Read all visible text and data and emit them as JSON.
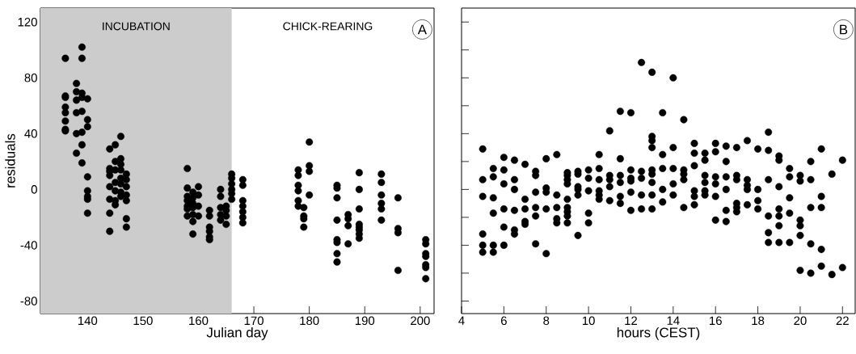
{
  "chart_data": [
    {
      "type": "scatter",
      "xlabel": "Julian day",
      "ylabel": "residuals",
      "color": "#000000",
      "marker": "circle",
      "x": [
        136,
        136,
        136,
        136,
        136,
        136,
        136,
        136,
        138,
        138,
        138,
        138,
        138,
        138,
        139,
        139,
        139,
        139,
        139,
        139,
        139,
        139,
        140,
        140,
        140,
        140,
        140,
        140,
        140,
        140,
        144,
        144,
        144,
        144,
        144,
        144,
        144,
        144,
        145,
        145,
        145,
        145,
        145,
        145,
        145,
        146,
        146,
        146,
        146,
        146,
        146,
        146,
        146,
        147,
        147,
        147,
        147,
        147,
        147,
        147,
        158,
        158,
        158,
        158,
        158,
        158,
        158,
        159,
        159,
        159,
        159,
        159,
        159,
        159,
        160,
        160,
        160,
        160,
        162,
        162,
        162,
        162,
        162,
        162,
        164,
        164,
        164,
        164,
        164,
        165,
        165,
        165,
        165,
        166,
        166,
        166,
        166,
        166,
        166,
        168,
        168,
        168,
        168,
        168,
        168,
        168,
        178,
        178,
        178,
        178,
        178,
        178,
        179,
        179,
        179,
        179,
        180,
        180,
        180,
        180,
        185,
        185,
        185,
        185,
        185,
        185,
        185,
        185,
        187,
        187,
        187,
        187,
        189,
        189,
        189,
        189,
        189,
        189,
        189,
        189,
        193,
        193,
        193,
        193,
        193,
        193,
        196,
        196,
        196,
        196,
        201,
        201,
        201,
        201,
        201,
        201,
        201
      ],
      "values": [
        94,
        67,
        66,
        59,
        55,
        49,
        43,
        42,
        76,
        70,
        64,
        55,
        40,
        26,
        102,
        94,
        69,
        66,
        56,
        41,
        32,
        19,
        65,
        50,
        45,
        9,
        -1,
        -5,
        -7,
        -17,
        29,
        15,
        13,
        10,
        2,
        -7,
        -17,
        -30,
        32,
        20,
        14,
        5,
        -1,
        -8,
        -11,
        38,
        22,
        18,
        14,
        8,
        4,
        -2,
        -5,
        11,
        7,
        2,
        -4,
        -8,
        -21,
        -27,
        15,
        1,
        -5,
        -8,
        -12,
        -14,
        -19,
        -2,
        -6,
        -10,
        -13,
        -18,
        -23,
        -32,
        2,
        -4,
        -12,
        -19,
        -15,
        -19,
        -27,
        -30,
        -34,
        -36,
        0,
        -5,
        -13,
        -18,
        -22,
        -12,
        -15,
        -19,
        -25,
        11,
        8,
        4,
        0,
        -3,
        -7,
        7,
        3,
        -8,
        -12,
        -16,
        -20,
        -24,
        14,
        10,
        3,
        -1,
        -8,
        -12,
        -13,
        -19,
        -21,
        -27,
        34,
        17,
        13,
        -4,
        3,
        1,
        -6,
        -22,
        -36,
        -38,
        -46,
        -52,
        -18,
        -21,
        -26,
        -39,
        12,
        0,
        -14,
        -25,
        -27,
        -29,
        -32,
        -35,
        11,
        5,
        -4,
        -10,
        -14,
        -22,
        -6,
        -28,
        -31,
        -58,
        -36,
        -39,
        -46,
        -48,
        -54,
        -56,
        -64
      ],
      "xlim": [
        131.5,
        202.5
      ],
      "ylim": [
        -89,
        130
      ],
      "xticks": [
        140,
        150,
        160,
        170,
        180,
        190,
        200
      ],
      "yticks": [
        -80,
        {
          "value": -60,
          "label": null
        },
        -40,
        {
          "value": -20,
          "label": null
        },
        0,
        {
          "value": 20,
          "label": null
        },
        40,
        {
          "value": 60,
          "label": null
        },
        80,
        {
          "value": 100,
          "label": null
        },
        120
      ],
      "bands": [
        {
          "axis": "x",
          "from": 131.5,
          "to": 166,
          "label": "INCUBATION",
          "color": "#cccccc"
        }
      ],
      "annotations": [
        "A",
        "CHICK-REARING"
      ]
    },
    {
      "type": "scatter",
      "xlabel": "hours (CEST)",
      "color": "#000000",
      "marker": "circle",
      "tick_labels": "x",
      "x": [
        5,
        5,
        5,
        5,
        5,
        5,
        5.5,
        5.5,
        5.5,
        5.5,
        5.5,
        5.5,
        6,
        6,
        6,
        6,
        6,
        6,
        6.5,
        6.5,
        6.5,
        6.5,
        6.5,
        6.5,
        7,
        7,
        7,
        7,
        7,
        7.5,
        7.5,
        7.5,
        7.5,
        7.5,
        7.5,
        8,
        8,
        8,
        8,
        8,
        8.5,
        8.5,
        8.5,
        8.5,
        8.5,
        9,
        9,
        9,
        9,
        9,
        9,
        9,
        9,
        9,
        9.5,
        9.5,
        9.5,
        9.5,
        9.5,
        9.5,
        10,
        10,
        10,
        10,
        10,
        10.5,
        10.5,
        10.5,
        10.5,
        10.5,
        10.5,
        11,
        11,
        11,
        11,
        11,
        11.5,
        11.5,
        11.5,
        11.5,
        11.5,
        11.5,
        12,
        12,
        12,
        12,
        12,
        12,
        12.5,
        12.5,
        12.5,
        12.5,
        12.5,
        13,
        13,
        13,
        13,
        13,
        13,
        13,
        13,
        13,
        13.5,
        13.5,
        13.5,
        13.5,
        13.5,
        14,
        14,
        14,
        14,
        14,
        14.5,
        14.5,
        14.5,
        14.5,
        14.5,
        15,
        15,
        15,
        15,
        15,
        15,
        15.5,
        15.5,
        15.5,
        15.5,
        15.5,
        15.5,
        16,
        16,
        16,
        16,
        16,
        16,
        16.5,
        16.5,
        16.5,
        16.5,
        16.5,
        16.5,
        17,
        17,
        17,
        17,
        17,
        17,
        17.5,
        17.5,
        17.5,
        17.5,
        17.5,
        18,
        18,
        18,
        18,
        18.5,
        18.5,
        18.5,
        18.5,
        18.5,
        18.5,
        19,
        19,
        19,
        19,
        19,
        19,
        19,
        19.5,
        19.5,
        19.5,
        19.5,
        19.5,
        20,
        20,
        20,
        20,
        20,
        20,
        20.5,
        20.5,
        20.5,
        20.5,
        20.5,
        21,
        21,
        21,
        21,
        21,
        21.5,
        21.5,
        22,
        22
      ],
      "values": [
        29,
        7,
        -5,
        -32,
        -40,
        -45,
        15,
        9,
        -6,
        -17,
        -40,
        -45,
        23,
        14,
        4,
        -14,
        -27,
        -40,
        21,
        7,
        0,
        -15,
        -29,
        -32,
        18,
        -7,
        -14,
        -23,
        -25,
        13,
        10,
        -2,
        -13,
        -19,
        -39,
        22,
        1,
        -2,
        -14,
        -46,
        25,
        -4,
        -13,
        -21,
        -24,
        12,
        10,
        7,
        4,
        -7,
        -13,
        -16,
        -19,
        -24,
        13,
        11,
        2,
        0,
        -4,
        -33,
        14,
        8,
        -1,
        -17,
        -24,
        25,
        15,
        7,
        -1,
        -4,
        -7,
        42,
        10,
        7,
        2,
        -8,
        56,
        22,
        10,
        5,
        -5,
        -10,
        55,
        14,
        8,
        6,
        -2,
        -15,
        91,
        13,
        8,
        -4,
        -14,
        84,
        38,
        35,
        30,
        14,
        11,
        5,
        -4,
        -14,
        55,
        25,
        15,
        0,
        -9,
        80,
        30,
        15,
        4,
        -4,
        50,
        14,
        11,
        7,
        -13,
        33,
        26,
        17,
        -1,
        -5,
        -11,
        26,
        21,
        10,
        5,
        -1,
        -4,
        33,
        27,
        9,
        4,
        -5,
        -22,
        31,
        20,
        9,
        0,
        -15,
        -23,
        30,
        10,
        7,
        -10,
        -13,
        -16,
        35,
        7,
        3,
        0,
        -11,
        29,
        0,
        -8,
        -14,
        41,
        28,
        7,
        -19,
        -31,
        -38,
        24,
        21,
        2,
        -14,
        -19,
        -26,
        -38,
        15,
        9,
        -6,
        -17,
        -38,
        10,
        6,
        -22,
        -26,
        -33,
        -58,
        20,
        7,
        -13,
        -39,
        -60,
        29,
        -5,
        -13,
        -43,
        -55,
        11,
        -61,
        21,
        -56
      ],
      "xlim": [
        4,
        22.6
      ],
      "ylim": [
        -89,
        130
      ],
      "xticks": [
        4,
        6,
        8,
        10,
        12,
        14,
        16,
        18,
        20,
        22
      ],
      "yticks": [
        -80,
        {
          "value": -60,
          "label": null
        },
        -40,
        {
          "value": -20,
          "label": null
        },
        0,
        {
          "value": 20,
          "label": null
        },
        40,
        {
          "value": 60,
          "label": null
        },
        80,
        {
          "value": 100,
          "label": null
        },
        120
      ],
      "annotations": [
        "B"
      ]
    }
  ]
}
